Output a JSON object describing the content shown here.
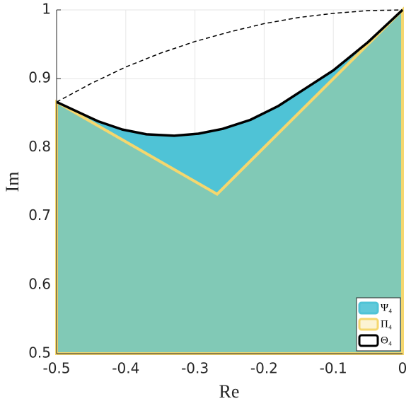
{
  "chart_data": {
    "type": "area",
    "xlabel": "Re",
    "ylabel": "Im",
    "xlim": [
      -0.5,
      0
    ],
    "ylim": [
      0.5,
      1
    ],
    "xticks": [
      -0.5,
      -0.4,
      -0.3,
      -0.2,
      -0.1,
      0
    ],
    "yticks": [
      0.5,
      0.6,
      0.7,
      0.8,
      0.9,
      1
    ],
    "grid": true,
    "legend": "lower right",
    "series": [
      {
        "name": "Ψ₄",
        "color": "#4fc3d6",
        "fill": true,
        "x": [
          -0.5,
          -0.44,
          -0.405,
          -0.37,
          -0.33,
          -0.295,
          -0.26,
          -0.22,
          -0.18,
          -0.14,
          -0.1,
          -0.05,
          0
        ],
        "values": [
          0.866,
          0.838,
          0.826,
          0.819,
          0.817,
          0.82,
          0.827,
          0.84,
          0.86,
          0.886,
          0.912,
          0.953,
          1
        ]
      },
      {
        "name": "Π₄",
        "color": "#f5d76e",
        "fill": true,
        "x": [
          -0.5,
          -0.5,
          -0.268,
          0
        ],
        "values": [
          0.5,
          0.866,
          0.732,
          1
        ]
      },
      {
        "name": "Θ₄",
        "color": "#000000",
        "fill": false,
        "x": [
          -0.5,
          -0.44,
          -0.405,
          -0.37,
          -0.33,
          -0.295,
          -0.26,
          -0.22,
          -0.18,
          -0.14,
          -0.1,
          -0.05,
          0
        ],
        "values": [
          0.866,
          0.838,
          0.826,
          0.819,
          0.817,
          0.82,
          0.827,
          0.84,
          0.86,
          0.886,
          0.912,
          0.953,
          1
        ]
      },
      {
        "color": "#000000",
        "fill": false,
        "dashed": true,
        "x": [
          -0.5,
          -0.45,
          -0.4,
          -0.35,
          -0.3,
          -0.25,
          -0.2,
          -0.15,
          -0.1,
          -0.05,
          0
        ],
        "values": [
          0.866,
          0.893,
          0.917,
          0.937,
          0.954,
          0.968,
          0.98,
          0.989,
          0.995,
          0.999,
          1
        ]
      }
    ]
  }
}
